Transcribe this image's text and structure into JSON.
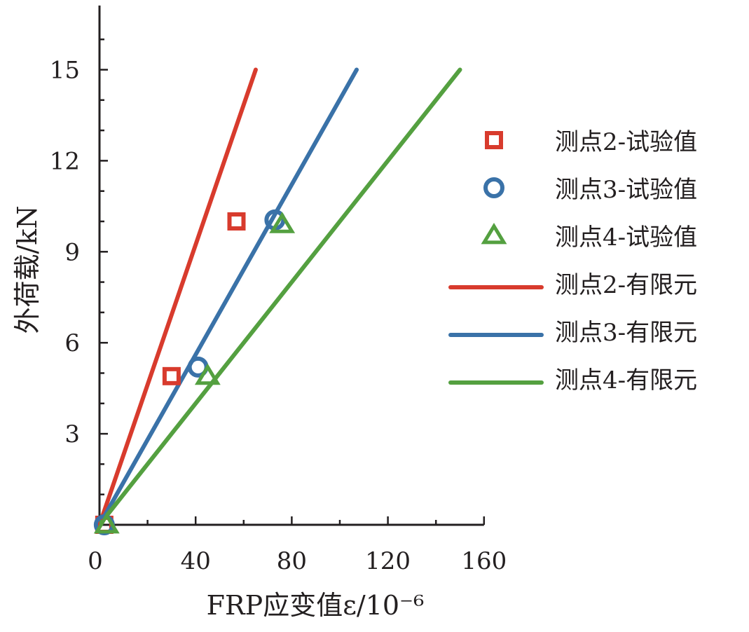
{
  "chart_data": {
    "type": "line",
    "xlabel": "FRP应变值ε/10⁻⁶",
    "ylabel": "外荷载/kN",
    "xlim": [
      0,
      160
    ],
    "ylim": [
      0,
      17
    ],
    "x_ticks": [
      0,
      40,
      80,
      120,
      160
    ],
    "y_ticks": [
      3,
      6,
      9,
      12,
      15
    ],
    "grid": false,
    "legend_position": "right",
    "series": [
      {
        "name": "测点2-试验值",
        "kind": "scatter",
        "marker": "square",
        "color": "#d83b2d",
        "x": [
          2,
          30,
          57
        ],
        "y": [
          0,
          4.9,
          10
        ]
      },
      {
        "name": "测点3-试验值",
        "kind": "scatter",
        "marker": "circle",
        "color": "#3a72a8",
        "x": [
          2,
          41,
          73
        ],
        "y": [
          0,
          5.2,
          10.05
        ]
      },
      {
        "name": "测点4-试验值",
        "kind": "scatter",
        "marker": "triangle",
        "color": "#54a040",
        "x": [
          3,
          45,
          76
        ],
        "y": [
          0,
          4.9,
          9.9
        ]
      },
      {
        "name": "测点2-有限元",
        "kind": "line",
        "color": "#d83b2d",
        "x": [
          0,
          65
        ],
        "y": [
          0,
          15
        ]
      },
      {
        "name": "测点3-有限元",
        "kind": "line",
        "color": "#3a72a8",
        "x": [
          0,
          107
        ],
        "y": [
          0,
          15
        ]
      },
      {
        "name": "测点4-有限元",
        "kind": "line",
        "color": "#54a040",
        "x": [
          0,
          150
        ],
        "y": [
          0,
          15
        ]
      }
    ]
  }
}
